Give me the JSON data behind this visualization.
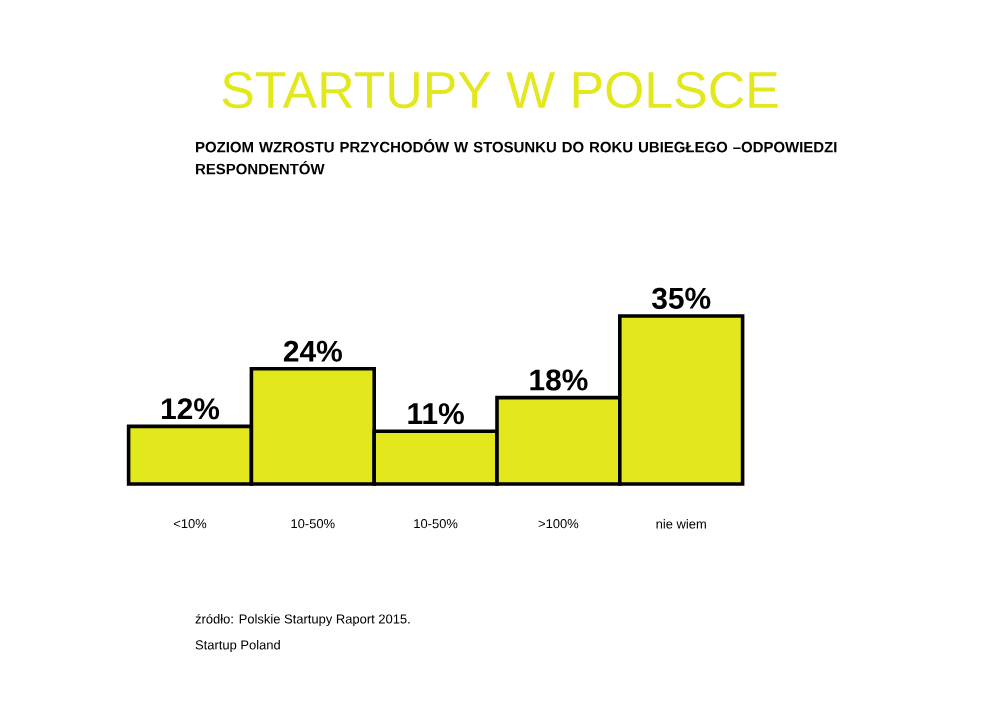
{
  "chart_data": {
    "type": "bar",
    "title": "STARTUPY W POLSCE",
    "subtitle": "POZIOM WZROSTU PRZYCHODÓW W STOSUNKU DO ROKU UBIEGŁEGO –ODPOWIEDZI RESPONDENTÓW",
    "categories": [
      "<10%",
      "10-50%",
      "10-50%",
      ">100%",
      "nie wiem"
    ],
    "values": [
      12,
      24,
      11,
      18,
      35
    ],
    "value_labels": [
      "12%",
      "24%",
      "11%",
      "18%",
      "35%"
    ],
    "color": "#e3e81c",
    "annotations": [
      "źródło: Polskie Startupy Raport 2015.",
      "Startup Poland"
    ]
  }
}
